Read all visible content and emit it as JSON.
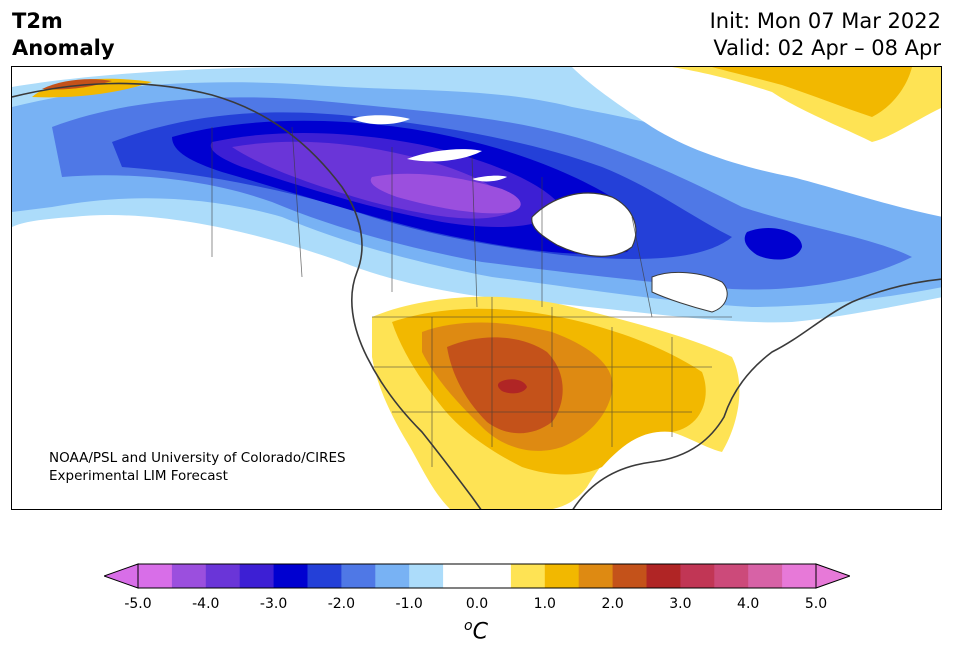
{
  "title": {
    "line1": "T2m",
    "line2": "Anomaly"
  },
  "run": {
    "init": "Init: Mon 07 Mar 2022",
    "valid": "Valid: 02 Apr – 08 Apr"
  },
  "credit": {
    "line1": "NOAA/PSL and University of Colorado/CIRES",
    "line2": "Experimental LIM Forecast"
  },
  "colorbar": {
    "ticks": [
      "-5.0",
      "-4.0",
      "-3.0",
      "-2.0",
      "-1.0",
      "0.0",
      "1.0",
      "2.0",
      "3.0",
      "4.0",
      "5.0"
    ],
    "unit_base": "C",
    "unit_sup": "o",
    "colors": [
      "#d86ee8",
      "#9b4fde",
      "#6a35d8",
      "#3d1fd4",
      "#0000d0",
      "#2440d8",
      "#4f78e6",
      "#78b2f4",
      "#acdcfa",
      "#ffffff",
      "#ffffff",
      "#fee354",
      "#f2b800",
      "#de8a12",
      "#c4521a",
      "#b02525",
      "#c13655",
      "#cc4a7a",
      "#d762a6",
      "#e779d8"
    ],
    "under_color": "#d86ee8",
    "over_color": "#e779d8"
  },
  "map": {
    "field": "2m temperature anomaly",
    "land_outline_color": "#3a3a3a",
    "water_color": "#ffffff"
  }
}
